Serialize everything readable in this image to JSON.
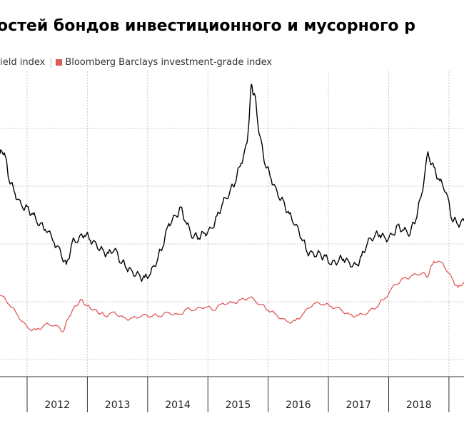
{
  "title": "остей бондов инвестиционного и мусорного р",
  "chart_data": {
    "type": "line",
    "title": "остей бондов инвестиционного и мусорного р",
    "x_categories": [
      "2012",
      "2013",
      "2014",
      "2015",
      "2016",
      "2017",
      "2018"
    ],
    "x_range": [
      2011.55,
      2019.25
    ],
    "ylim": [
      0,
      10
    ],
    "grid": true,
    "legend_position": "top-left",
    "series": [
      {
        "name": "-yield index",
        "color": "#000000",
        "points": [
          [
            2011.55,
            7.3
          ],
          [
            2011.62,
            7.4
          ],
          [
            2011.7,
            6.5
          ],
          [
            2011.8,
            6.0
          ],
          [
            2011.9,
            5.6
          ],
          [
            2012.0,
            5.5
          ],
          [
            2012.1,
            5.3
          ],
          [
            2012.2,
            5.0
          ],
          [
            2012.3,
            4.9
          ],
          [
            2012.45,
            4.4
          ],
          [
            2012.55,
            4.1
          ],
          [
            2012.65,
            3.6
          ],
          [
            2012.75,
            4.4
          ],
          [
            2012.85,
            4.5
          ],
          [
            2012.95,
            4.7
          ],
          [
            2013.05,
            4.5
          ],
          [
            2013.15,
            4.3
          ],
          [
            2013.25,
            4.1
          ],
          [
            2013.35,
            4.0
          ],
          [
            2013.45,
            4.2
          ],
          [
            2013.55,
            3.8
          ],
          [
            2013.65,
            3.6
          ],
          [
            2013.75,
            3.4
          ],
          [
            2013.85,
            3.3
          ],
          [
            2013.95,
            3.2
          ],
          [
            2014.05,
            3.4
          ],
          [
            2014.15,
            3.8
          ],
          [
            2014.25,
            4.3
          ],
          [
            2014.35,
            5.0
          ],
          [
            2014.45,
            5.2
          ],
          [
            2014.55,
            5.5
          ],
          [
            2014.65,
            5.0
          ],
          [
            2014.75,
            4.6
          ],
          [
            2014.85,
            4.6
          ],
          [
            2014.95,
            4.7
          ],
          [
            2015.05,
            4.8
          ],
          [
            2015.15,
            5.2
          ],
          [
            2015.25,
            5.7
          ],
          [
            2015.35,
            6.0
          ],
          [
            2015.45,
            6.4
          ],
          [
            2015.55,
            7.0
          ],
          [
            2015.65,
            7.6
          ],
          [
            2015.72,
            9.5
          ],
          [
            2015.78,
            9.2
          ],
          [
            2015.85,
            8.0
          ],
          [
            2015.95,
            7.0
          ],
          [
            2016.05,
            6.5
          ],
          [
            2016.15,
            6.0
          ],
          [
            2016.25,
            5.7
          ],
          [
            2016.35,
            5.3
          ],
          [
            2016.45,
            5.0
          ],
          [
            2016.55,
            4.6
          ],
          [
            2016.65,
            4.1
          ],
          [
            2016.75,
            4.0
          ],
          [
            2016.85,
            4.0
          ],
          [
            2016.95,
            3.9
          ],
          [
            2017.05,
            3.7
          ],
          [
            2017.15,
            3.8
          ],
          [
            2017.25,
            3.9
          ],
          [
            2017.35,
            3.7
          ],
          [
            2017.45,
            3.6
          ],
          [
            2017.55,
            3.9
          ],
          [
            2017.65,
            4.4
          ],
          [
            2017.75,
            4.6
          ],
          [
            2017.85,
            4.7
          ],
          [
            2017.95,
            4.5
          ],
          [
            2018.05,
            4.6
          ],
          [
            2018.15,
            4.9
          ],
          [
            2018.25,
            4.8
          ],
          [
            2018.35,
            4.7
          ],
          [
            2018.45,
            5.2
          ],
          [
            2018.55,
            6.0
          ],
          [
            2018.65,
            7.3
          ],
          [
            2018.75,
            6.8
          ],
          [
            2018.85,
            6.4
          ],
          [
            2018.95,
            6.1
          ],
          [
            2019.05,
            5.2
          ],
          [
            2019.15,
            5.0
          ],
          [
            2019.25,
            5.1
          ]
        ]
      },
      {
        "name": "Bloomberg Barclays investment-grade index",
        "color": "#e05a5a",
        "points": [
          [
            2011.55,
            2.7
          ],
          [
            2011.7,
            2.4
          ],
          [
            2011.85,
            2.0
          ],
          [
            2012.0,
            1.6
          ],
          [
            2012.15,
            1.5
          ],
          [
            2012.3,
            1.7
          ],
          [
            2012.45,
            1.7
          ],
          [
            2012.6,
            1.5
          ],
          [
            2012.7,
            2.0
          ],
          [
            2012.8,
            2.3
          ],
          [
            2012.9,
            2.5
          ],
          [
            2013.0,
            2.3
          ],
          [
            2013.1,
            2.2
          ],
          [
            2013.2,
            2.1
          ],
          [
            2013.3,
            2.0
          ],
          [
            2013.45,
            2.1
          ],
          [
            2013.6,
            1.9
          ],
          [
            2013.75,
            1.9
          ],
          [
            2013.9,
            2.0
          ],
          [
            2014.05,
            2.0
          ],
          [
            2014.2,
            2.0
          ],
          [
            2014.35,
            2.1
          ],
          [
            2014.5,
            2.0
          ],
          [
            2014.65,
            2.2
          ],
          [
            2014.8,
            2.2
          ],
          [
            2014.95,
            2.3
          ],
          [
            2015.1,
            2.2
          ],
          [
            2015.25,
            2.4
          ],
          [
            2015.4,
            2.4
          ],
          [
            2015.55,
            2.5
          ],
          [
            2015.7,
            2.6
          ],
          [
            2015.85,
            2.4
          ],
          [
            2016.0,
            2.2
          ],
          [
            2016.15,
            2.0
          ],
          [
            2016.3,
            1.8
          ],
          [
            2016.45,
            1.8
          ],
          [
            2016.6,
            2.1
          ],
          [
            2016.75,
            2.4
          ],
          [
            2016.9,
            2.4
          ],
          [
            2017.05,
            2.3
          ],
          [
            2017.2,
            2.2
          ],
          [
            2017.35,
            2.0
          ],
          [
            2017.5,
            2.0
          ],
          [
            2017.65,
            2.1
          ],
          [
            2017.8,
            2.3
          ],
          [
            2017.95,
            2.6
          ],
          [
            2018.1,
            3.0
          ],
          [
            2018.25,
            3.2
          ],
          [
            2018.4,
            3.3
          ],
          [
            2018.55,
            3.4
          ],
          [
            2018.65,
            3.3
          ],
          [
            2018.75,
            3.8
          ],
          [
            2018.9,
            3.7
          ],
          [
            2019.05,
            3.2
          ],
          [
            2019.15,
            2.9
          ],
          [
            2019.25,
            3.1
          ]
        ]
      }
    ]
  }
}
